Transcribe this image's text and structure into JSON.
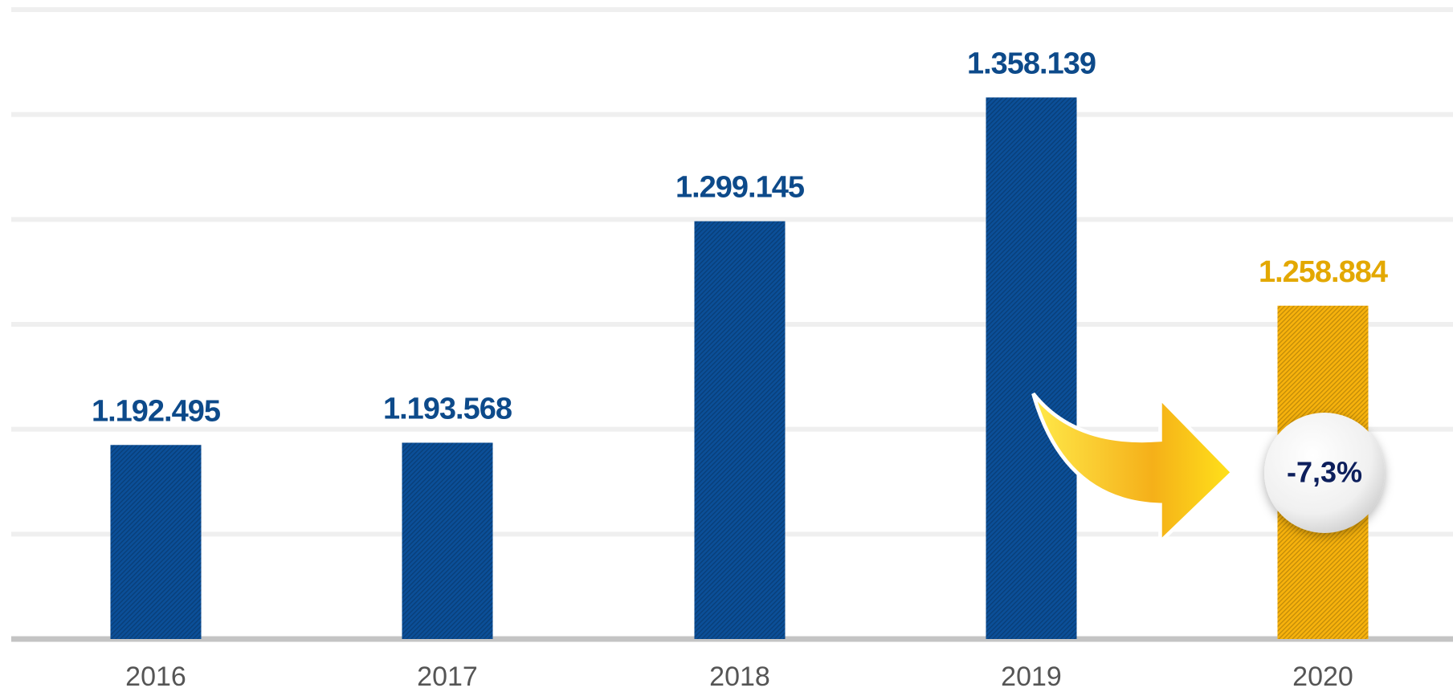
{
  "chart_data": {
    "type": "bar",
    "categories": [
      "2016",
      "2017",
      "2018",
      "2019",
      "2020"
    ],
    "values": [
      1192495,
      1193568,
      1299145,
      1358139,
      1258884
    ],
    "value_labels": [
      "1.192.495",
      "1.193.568",
      "1.299.145",
      "1.358.139",
      "1.258.884"
    ],
    "colors": [
      "#0b4f98",
      "#0b4f98",
      "#0b4f98",
      "#0b4f98",
      "#f7b20c"
    ],
    "label_colors": [
      "#0d4a8a",
      "#0d4a8a",
      "#0d4a8a",
      "#0d4a8a",
      "#e3a800"
    ],
    "ylim": [
      1100000,
      1400000
    ],
    "yticks": [
      1100000,
      1150000,
      1200000,
      1250000,
      1300000,
      1350000,
      1400000
    ],
    "grid": true,
    "annotation": "-7,3%"
  }
}
